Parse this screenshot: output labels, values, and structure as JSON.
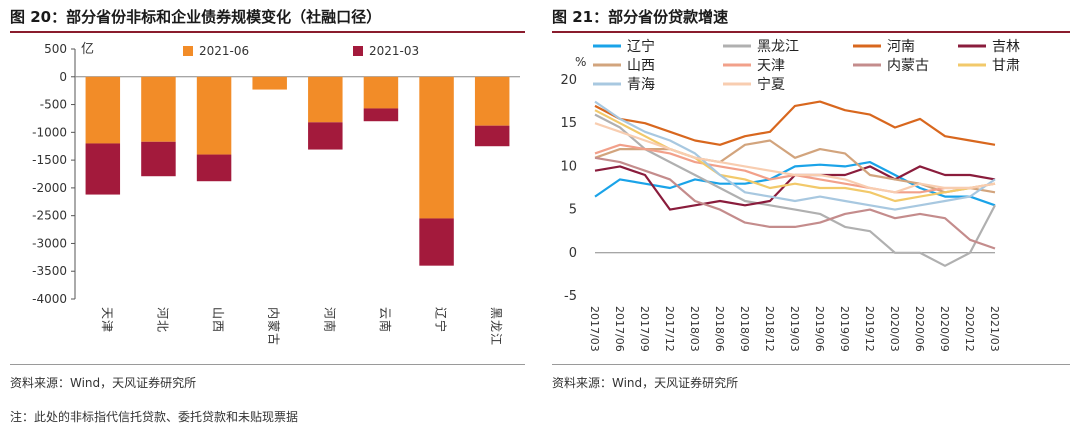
{
  "left": {
    "title": "图 20：部分省份非标和企业债券规模变化（社融口径）",
    "source": "资料来源：Wind，天风证券研究所",
    "note": "注：此处的非标指代信托贷款、委托贷款和未贴现票据"
  },
  "right": {
    "title": "图 21：部分省份贷款增速",
    "source": "资料来源：Wind，天风证券研究所"
  },
  "colors": {
    "accent": "#8a1c2d",
    "orange": "#f28c28",
    "crimson": "#a31a3c"
  },
  "chart_data": [
    {
      "type": "bar",
      "stacked": true,
      "ylabel": "亿",
      "ylim": [
        -4000,
        500
      ],
      "yticks": [
        500,
        0,
        -500,
        -1000,
        -1500,
        -2000,
        -2500,
        -3000,
        -3500,
        -4000
      ],
      "categories": [
        "天津",
        "河北",
        "山西",
        "内蒙古",
        "河南",
        "云南",
        "辽宁",
        "黑龙江"
      ],
      "series": [
        {
          "name": "2021-06",
          "color": "#f28c28",
          "values": [
            -1200,
            -1170,
            -1400,
            -230,
            -820,
            -570,
            -2550,
            -880
          ]
        },
        {
          "name": "2021-03",
          "color": "#a31a3c",
          "values": [
            -920,
            -620,
            -480,
            0,
            -490,
            -230,
            -850,
            -370
          ]
        }
      ],
      "legend": "top"
    },
    {
      "type": "line",
      "ylabel": "%",
      "ylim": [
        -5,
        20
      ],
      "yticks": [
        20,
        15,
        10,
        5,
        0,
        -5
      ],
      "xticks": [
        "2017/03",
        "2017/06",
        "2017/09",
        "2017/12",
        "2018/03",
        "2018/06",
        "2018/09",
        "2018/12",
        "2019/03",
        "2019/06",
        "2019/09",
        "2019/12",
        "2020/03",
        "2020/06",
        "2020/09",
        "2020/12",
        "2021/03"
      ],
      "legend": "top",
      "series": [
        {
          "name": "辽宁",
          "color": "#1aa3e8",
          "values": [
            6.5,
            8.5,
            8.0,
            7.5,
            8.5,
            8.0,
            8.0,
            8.5,
            10.0,
            10.2,
            10.0,
            10.5,
            9.0,
            7.5,
            6.5,
            6.5,
            5.5
          ]
        },
        {
          "name": "黑龙江",
          "color": "#b0b0b0",
          "values": [
            16.0,
            14.5,
            12.0,
            10.5,
            9.0,
            7.5,
            6.0,
            5.5,
            5.0,
            4.5,
            3.0,
            2.5,
            0.0,
            0.0,
            -1.5,
            0.0,
            5.5
          ]
        },
        {
          "name": "河南",
          "color": "#d8671e",
          "values": [
            17.0,
            15.5,
            15.0,
            14.0,
            13.0,
            12.5,
            13.5,
            14.0,
            17.0,
            17.5,
            16.5,
            16.0,
            14.5,
            15.5,
            13.5,
            13.0,
            12.5
          ]
        },
        {
          "name": "吉林",
          "color": "#8a1c3c",
          "values": [
            9.5,
            10.0,
            9.0,
            5.0,
            5.5,
            6.0,
            5.5,
            6.0,
            9.0,
            9.0,
            9.0,
            10.0,
            8.5,
            10.0,
            9.0,
            9.0,
            8.5
          ]
        },
        {
          "name": "山西",
          "color": "#d2a47d",
          "values": [
            11.0,
            12.0,
            12.0,
            12.0,
            11.0,
            10.5,
            12.5,
            13.0,
            11.0,
            12.0,
            11.5,
            9.0,
            8.5,
            8.0,
            7.0,
            7.5,
            7.0
          ]
        },
        {
          "name": "天津",
          "color": "#f2a08a",
          "values": [
            11.5,
            12.5,
            12.0,
            11.5,
            10.5,
            10.0,
            9.5,
            8.5,
            9.0,
            8.5,
            8.0,
            7.5,
            7.0,
            7.0,
            7.5,
            7.5,
            8.0
          ]
        },
        {
          "name": "内蒙古",
          "color": "#c48c8c",
          "values": [
            11.0,
            10.5,
            9.5,
            8.5,
            6.0,
            5.0,
            3.5,
            3.0,
            3.0,
            3.5,
            4.5,
            5.0,
            4.0,
            4.5,
            4.0,
            1.5,
            0.5
          ]
        },
        {
          "name": "甘肃",
          "color": "#f2c96a",
          "values": [
            16.5,
            15.0,
            13.5,
            12.0,
            11.0,
            9.0,
            8.5,
            7.5,
            8.0,
            7.5,
            7.5,
            7.0,
            6.0,
            6.5,
            7.0,
            7.5,
            8.0
          ]
        },
        {
          "name": "青海",
          "color": "#a8c8e0",
          "values": [
            17.5,
            15.5,
            14.0,
            13.0,
            11.5,
            9.0,
            7.0,
            6.5,
            6.0,
            6.5,
            6.0,
            5.5,
            5.0,
            5.5,
            6.0,
            6.5,
            8.5
          ]
        },
        {
          "name": "宁夏",
          "color": "#f8cdb0",
          "values": [
            15.0,
            14.0,
            13.0,
            12.0,
            11.0,
            10.5,
            10.0,
            9.5,
            9.0,
            9.0,
            8.5,
            7.5,
            7.0,
            8.0,
            7.5,
            7.5,
            8.0
          ]
        }
      ]
    }
  ]
}
